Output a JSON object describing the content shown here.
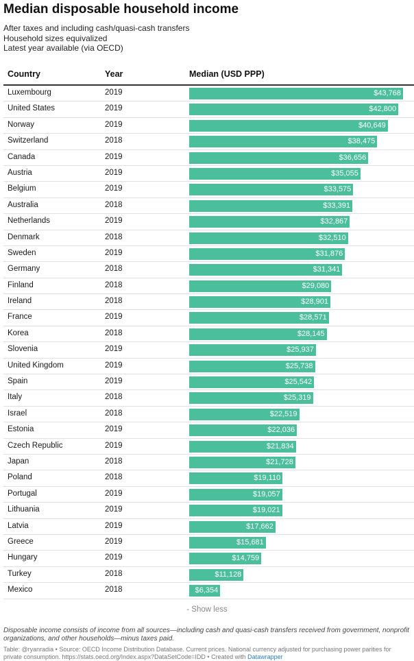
{
  "header": {
    "title": "Median disposable household income",
    "subtitle_lines": [
      "After taxes and including cash/quasi-cash transfers",
      "Household sizes equivalized",
      "Latest year available (via OECD)"
    ]
  },
  "columns": {
    "country": "Country",
    "year": "Year",
    "median": "Median (USD PPP)"
  },
  "colors": {
    "bar": "#4bbf9b",
    "value_text": "#ffffff"
  },
  "rows": [
    {
      "country": "Luxembourg",
      "year": "2019",
      "value_label": "$43,768"
    },
    {
      "country": "United States",
      "year": "2019",
      "value_label": "$42,800"
    },
    {
      "country": "Norway",
      "year": "2019",
      "value_label": "$40,649"
    },
    {
      "country": "Switzerland",
      "year": "2018",
      "value_label": "$38,475"
    },
    {
      "country": "Canada",
      "year": "2019",
      "value_label": "$36,656"
    },
    {
      "country": "Austria",
      "year": "2019",
      "value_label": "$35,055"
    },
    {
      "country": "Belgium",
      "year": "2019",
      "value_label": "$33,575"
    },
    {
      "country": "Australia",
      "year": "2018",
      "value_label": "$33,391"
    },
    {
      "country": "Netherlands",
      "year": "2019",
      "value_label": "$32,867"
    },
    {
      "country": "Denmark",
      "year": "2018",
      "value_label": "$32,510"
    },
    {
      "country": "Sweden",
      "year": "2019",
      "value_label": "$31,876"
    },
    {
      "country": "Germany",
      "year": "2018",
      "value_label": "$31,341"
    },
    {
      "country": "Finland",
      "year": "2018",
      "value_label": "$29,080"
    },
    {
      "country": "Ireland",
      "year": "2018",
      "value_label": "$28,901"
    },
    {
      "country": "France",
      "year": "2019",
      "value_label": "$28,571"
    },
    {
      "country": "Korea",
      "year": "2018",
      "value_label": "$28,145"
    },
    {
      "country": "Slovenia",
      "year": "2019",
      "value_label": "$25,937"
    },
    {
      "country": "United Kingdom",
      "year": "2019",
      "value_label": "$25,738"
    },
    {
      "country": "Spain",
      "year": "2019",
      "value_label": "$25,542"
    },
    {
      "country": "Italy",
      "year": "2018",
      "value_label": "$25,319"
    },
    {
      "country": "Israel",
      "year": "2018",
      "value_label": "$22,519"
    },
    {
      "country": "Estonia",
      "year": "2019",
      "value_label": "$22,036"
    },
    {
      "country": "Czech Republic",
      "year": "2019",
      "value_label": "$21,834"
    },
    {
      "country": "Japan",
      "year": "2018",
      "value_label": "$21,728"
    },
    {
      "country": "Poland",
      "year": "2018",
      "value_label": "$19,110"
    },
    {
      "country": "Portugal",
      "year": "2019",
      "value_label": "$19,057"
    },
    {
      "country": "Lithuania",
      "year": "2019",
      "value_label": "$19,021"
    },
    {
      "country": "Latvia",
      "year": "2019",
      "value_label": "$17,662"
    },
    {
      "country": "Greece",
      "year": "2019",
      "value_label": "$15,681"
    },
    {
      "country": "Hungary",
      "year": "2019",
      "value_label": "$14,759"
    },
    {
      "country": "Turkey",
      "year": "2018",
      "value_label": "$11,128"
    },
    {
      "country": "Mexico",
      "year": "2018",
      "value_label": "$6,354"
    }
  ],
  "chart_data": {
    "type": "bar",
    "title": "Median disposable household income",
    "xlabel": "",
    "ylabel": "Median (USD PPP)",
    "categories": [
      "Luxembourg",
      "United States",
      "Norway",
      "Switzerland",
      "Canada",
      "Austria",
      "Belgium",
      "Australia",
      "Netherlands",
      "Denmark",
      "Sweden",
      "Germany",
      "Finland",
      "Ireland",
      "France",
      "Korea",
      "Slovenia",
      "United Kingdom",
      "Spain",
      "Italy",
      "Israel",
      "Estonia",
      "Czech Republic",
      "Japan",
      "Poland",
      "Portugal",
      "Lithuania",
      "Latvia",
      "Greece",
      "Hungary",
      "Turkey",
      "Mexico"
    ],
    "values": [
      43768,
      42800,
      40649,
      38475,
      36656,
      35055,
      33575,
      33391,
      32867,
      32510,
      31876,
      31341,
      29080,
      28901,
      28571,
      28145,
      25937,
      25738,
      25542,
      25319,
      22519,
      22036,
      21834,
      21728,
      19110,
      19057,
      19021,
      17662,
      15681,
      14759,
      11128,
      6354
    ],
    "years": [
      "2019",
      "2019",
      "2019",
      "2018",
      "2019",
      "2019",
      "2019",
      "2018",
      "2019",
      "2018",
      "2019",
      "2018",
      "2018",
      "2018",
      "2019",
      "2018",
      "2019",
      "2019",
      "2019",
      "2018",
      "2018",
      "2019",
      "2019",
      "2018",
      "2018",
      "2019",
      "2019",
      "2019",
      "2019",
      "2019",
      "2018",
      "2018"
    ],
    "ylim": [
      0,
      43768
    ],
    "grid": false
  },
  "footer": {
    "show_less": "- Show less",
    "notes": "Disposable income consists of income from all sources—including cash and quasi-cash transfers received from government, nonprofit organizations, and other households—minus taxes paid.",
    "source_text": "Table: @ryanradia • Source: OECD Income Distribution Database. Current prices. National currency adjusted for purchasing power parities for private consumption. https://stats.oecd.org/Index.aspx?DataSetCode=IDD • Created with ",
    "datawrapper": "Datawrapper"
  }
}
